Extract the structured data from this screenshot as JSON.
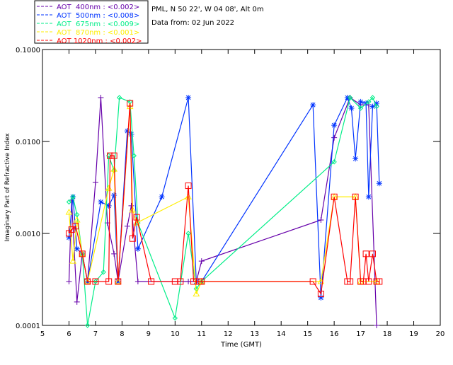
{
  "header": {
    "site": "PML, N 50 22', W 04 08', Alt 0m",
    "date": "Data from: 02 Jun 2022"
  },
  "chart_data": {
    "type": "line",
    "xlabel": "Time (GMT)",
    "ylabel": "Imaginary Part of Refractive Index",
    "xlim": [
      5,
      20
    ],
    "ylim": [
      0.0001,
      0.1
    ],
    "yscale": "log",
    "xticks": [
      "5",
      "6",
      "7",
      "8",
      "9",
      "10",
      "11",
      "12",
      "13",
      "14",
      "15",
      "16",
      "17",
      "18",
      "19",
      "20"
    ],
    "yticks": [
      "0.0001",
      "0.0010",
      "0.0100",
      "0.1000"
    ],
    "legend_position": "top-left",
    "series": [
      {
        "name": "AOT  400nm : <0.002>",
        "color": "#6600aa",
        "marker": "plus",
        "points": [
          [
            6.0,
            0.0003
          ],
          [
            6.1,
            0.0023
          ],
          [
            6.3,
            0.00018
          ],
          [
            6.5,
            0.0006
          ],
          [
            6.7,
            0.0003
          ],
          [
            7.0,
            0.0036
          ],
          [
            7.2,
            0.03
          ],
          [
            7.45,
            0.0013
          ],
          [
            7.7,
            0.0006
          ],
          [
            7.85,
            0.0003
          ],
          [
            8.2,
            0.0012
          ],
          [
            8.35,
            0.002
          ],
          [
            8.6,
            0.0003
          ],
          [
            10.5,
            0.0003
          ],
          [
            10.8,
            0.0003
          ],
          [
            11.0,
            0.0005
          ],
          [
            15.5,
            0.0014
          ],
          [
            16.0,
            0.011
          ],
          [
            16.6,
            0.03
          ],
          [
            17.0,
            0.025
          ],
          [
            17.3,
            0.025
          ],
          [
            17.6,
            0.0001
          ]
        ]
      },
      {
        "name": "AOT  500nm : <0.008>",
        "color": "#0033ff",
        "marker": "asterisk",
        "points": [
          [
            6.0,
            0.0009
          ],
          [
            6.15,
            0.0025
          ],
          [
            6.3,
            0.00068
          ],
          [
            6.5,
            0.0006
          ],
          [
            6.7,
            0.0003
          ],
          [
            7.2,
            0.0022
          ],
          [
            7.5,
            0.002
          ],
          [
            7.7,
            0.0026
          ],
          [
            7.85,
            0.0003
          ],
          [
            8.2,
            0.013
          ],
          [
            8.35,
            0.012
          ],
          [
            8.6,
            0.00068
          ],
          [
            9.5,
            0.0025
          ],
          [
            10.5,
            0.03
          ],
          [
            10.8,
            0.0003
          ],
          [
            11.0,
            0.0003
          ],
          [
            15.2,
            0.025
          ],
          [
            15.5,
            0.0002
          ],
          [
            16.0,
            0.015
          ],
          [
            16.5,
            0.03
          ],
          [
            16.65,
            0.023
          ],
          [
            16.8,
            0.0065
          ],
          [
            17.0,
            0.027
          ],
          [
            17.2,
            0.026
          ],
          [
            17.3,
            0.0025
          ],
          [
            17.45,
            0.024
          ],
          [
            17.6,
            0.026
          ],
          [
            17.7,
            0.0035
          ]
        ]
      },
      {
        "name": "AOT  675nm : <0.009>",
        "color": "#00ee88",
        "marker": "diamond",
        "points": [
          [
            6.0,
            0.0022
          ],
          [
            6.15,
            0.0025
          ],
          [
            6.3,
            0.0016
          ],
          [
            6.5,
            0.0006
          ],
          [
            6.7,
            0.0001
          ],
          [
            7.0,
            0.0003
          ],
          [
            7.3,
            0.00038
          ],
          [
            7.5,
            0.007
          ],
          [
            7.7,
            0.0048
          ],
          [
            7.9,
            0.03
          ],
          [
            8.3,
            0.027
          ],
          [
            8.45,
            0.007
          ],
          [
            8.6,
            0.0013
          ],
          [
            10.0,
            0.00012
          ],
          [
            10.5,
            0.001
          ],
          [
            10.8,
            0.00025
          ],
          [
            11.0,
            0.0003
          ],
          [
            16.0,
            0.006
          ],
          [
            16.6,
            0.03
          ],
          [
            17.0,
            0.023
          ],
          [
            17.3,
            0.027
          ],
          [
            17.45,
            0.03
          ],
          [
            17.6,
            0.024
          ]
        ]
      },
      {
        "name": "AOT  870nm : <0.001>",
        "color": "#ffee00",
        "marker": "triangle",
        "points": [
          [
            6.0,
            0.0017
          ],
          [
            6.15,
            0.0005
          ],
          [
            6.3,
            0.0014
          ],
          [
            6.5,
            0.0006
          ],
          [
            6.7,
            0.0003
          ],
          [
            7.5,
            0.0031
          ],
          [
            7.7,
            0.005
          ],
          [
            7.85,
            0.0003
          ],
          [
            8.3,
            0.024
          ],
          [
            8.4,
            0.0018
          ],
          [
            8.55,
            0.0013
          ],
          [
            10.5,
            0.0025
          ],
          [
            10.8,
            0.00022
          ],
          [
            11.0,
            0.0003
          ],
          [
            15.5,
            0.0003
          ],
          [
            16.0,
            0.0025
          ],
          [
            16.8,
            0.0025
          ],
          [
            17.0,
            0.0003
          ],
          [
            17.6,
            0.0003
          ]
        ]
      },
      {
        "name": "AOT 1020nm : <0.002>",
        "color": "#ff0000",
        "marker": "square",
        "points": [
          [
            6.0,
            0.001
          ],
          [
            6.1,
            0.0011
          ],
          [
            6.25,
            0.0012
          ],
          [
            6.5,
            0.0006
          ],
          [
            6.7,
            0.0003
          ],
          [
            7.0,
            0.0003
          ],
          [
            7.5,
            0.0003
          ],
          [
            7.55,
            0.007
          ],
          [
            7.7,
            0.007
          ],
          [
            7.85,
            0.0003
          ],
          [
            8.3,
            0.026
          ],
          [
            8.4,
            0.00088
          ],
          [
            8.55,
            0.0015
          ],
          [
            9.1,
            0.0003
          ],
          [
            10.0,
            0.0003
          ],
          [
            10.2,
            0.0003
          ],
          [
            10.5,
            0.0033
          ],
          [
            10.7,
            0.0003
          ],
          [
            10.9,
            0.0003
          ],
          [
            11.0,
            0.0003
          ],
          [
            15.2,
            0.0003
          ],
          [
            15.5,
            0.00022
          ],
          [
            16.0,
            0.0025
          ],
          [
            16.5,
            0.0003
          ],
          [
            16.6,
            0.0003
          ],
          [
            16.8,
            0.0025
          ],
          [
            17.0,
            0.0003
          ],
          [
            17.1,
            0.0003
          ],
          [
            17.2,
            0.0006
          ],
          [
            17.3,
            0.0003
          ],
          [
            17.45,
            0.0006
          ],
          [
            17.6,
            0.0003
          ],
          [
            17.7,
            0.0003
          ]
        ]
      }
    ]
  }
}
